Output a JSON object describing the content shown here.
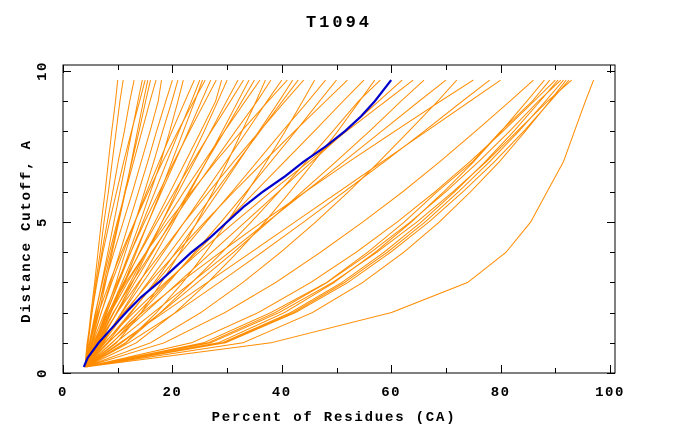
{
  "chart": {
    "background_color": "#ffffff",
    "axis_color": "#000000",
    "model_curve_color": "#ff8c00",
    "highlight_curve_color": "#0000cc"
  },
  "chart_data": {
    "type": "line",
    "title": "T1094",
    "xlabel": "Percent of Residues (CA)",
    "ylabel": "Distance Cutoff, A",
    "xlim": [
      0,
      102
    ],
    "ylim": [
      0,
      10.2
    ],
    "grid": false,
    "legend": "none",
    "x_major_ticks": [
      0,
      20,
      40,
      60,
      80,
      100
    ],
    "x_minor_ticks": [
      10,
      30,
      50,
      70,
      90
    ],
    "y_major_ticks": [
      0,
      5,
      10
    ],
    "y_minor_ticks": [
      1,
      2,
      3,
      4,
      6,
      7,
      8,
      9
    ],
    "cutoffs": [
      0.2,
      1,
      2,
      3,
      4,
      5,
      6,
      7,
      8,
      9,
      9.7
    ],
    "highlight_curve": {
      "color": "#0000cc",
      "cutoffs": [
        0.2,
        0.5,
        1,
        1.5,
        2,
        2.5,
        3,
        3.5,
        4,
        4.5,
        5,
        5.5,
        6,
        6.5,
        7,
        7.5,
        8,
        8.5,
        9,
        9.7
      ],
      "percents": [
        3.8,
        4.5,
        6.5,
        9,
        11.5,
        14.2,
        17.5,
        20.5,
        23.5,
        27,
        30,
        33,
        36.5,
        40.5,
        44,
        48,
        51.5,
        54.5,
        57,
        60
      ]
    },
    "model_curves": {
      "color": "#ff8c00",
      "percents_per_curve": [
        [
          4,
          4.5,
          5.1,
          5.8,
          6.4,
          7,
          7.7,
          8.3,
          8.9,
          9.6,
          10
        ],
        [
          4,
          4.6,
          5.3,
          6,
          6.8,
          7.5,
          8.3,
          9,
          9.7,
          10.4,
          11
        ],
        [
          4,
          4.5,
          5.3,
          6.2,
          7.1,
          8.1,
          9.1,
          10.1,
          11.2,
          12.2,
          13
        ],
        [
          4,
          4.9,
          6,
          7.1,
          8.2,
          9.3,
          10.4,
          11.5,
          12.6,
          13.7,
          14.5
        ],
        [
          4,
          4.4,
          5.3,
          6.2,
          7.3,
          8.5,
          9.8,
          11.1,
          12.5,
          14,
          15
        ],
        [
          4,
          5.2,
          6.6,
          7.8,
          9,
          10.2,
          11.4,
          12.5,
          13.6,
          14.7,
          15.5
        ],
        [
          4,
          5,
          6.3,
          7.5,
          8.8,
          10.1,
          11.3,
          12.6,
          13.9,
          15.1,
          16
        ],
        [
          4,
          4.8,
          5.9,
          7.2,
          8.5,
          9.9,
          11.4,
          12.9,
          14.4,
          15.9,
          17
        ],
        [
          4,
          4.9,
          6.2,
          7.7,
          9.3,
          11,
          12.7,
          14.3,
          15.9,
          17.4,
          18
        ],
        [
          4,
          5.3,
          7,
          8.7,
          10.4,
          12.1,
          13.8,
          15.5,
          17.1,
          18.8,
          20
        ],
        [
          4,
          5.8,
          7.8,
          9.7,
          11.4,
          13.2,
          14.9,
          16.6,
          18.2,
          19.9,
          21
        ],
        [
          4,
          5.9,
          8,
          10.1,
          12.1,
          14.1,
          16,
          17.9,
          19.5,
          21,
          22
        ],
        [
          4,
          5.2,
          7,
          8.9,
          11,
          13.1,
          15.3,
          17.6,
          19.9,
          22.3,
          24
        ],
        [
          4,
          5.8,
          8,
          10.2,
          12.4,
          14.6,
          16.8,
          19,
          21.2,
          23.5,
          25
        ],
        [
          4,
          6.3,
          8.8,
          11.2,
          13.4,
          15.6,
          17.8,
          19.9,
          22,
          24.1,
          25.5
        ],
        [
          4,
          4.9,
          6.5,
          8.5,
          10.7,
          13.1,
          15.6,
          18.2,
          21,
          23.9,
          26
        ],
        [
          4,
          5.9,
          8.4,
          10.8,
          13.2,
          15.6,
          18,
          20.5,
          22.9,
          25.3,
          27
        ],
        [
          4,
          5.4,
          7.6,
          9.9,
          12.4,
          14.9,
          17.6,
          20.3,
          23.1,
          26,
          28
        ],
        [
          4,
          6.1,
          8.6,
          11.3,
          14,
          16.8,
          19.6,
          22.4,
          25.2,
          27.9,
          29
        ],
        [
          4,
          6.8,
          9.8,
          12.7,
          15.4,
          18.1,
          20.7,
          23.2,
          25.8,
          28.3,
          30
        ],
        [
          4,
          6.4,
          9.3,
          12.3,
          15.2,
          18.1,
          21.1,
          24,
          27,
          29.9,
          32
        ],
        [
          4,
          5.7,
          8.3,
          11.1,
          14.1,
          17.2,
          20.4,
          23.7,
          27.1,
          30.6,
          33
        ],
        [
          4,
          7.2,
          10.7,
          14,
          17.1,
          20.2,
          23.2,
          26.2,
          29.1,
          32,
          34
        ],
        [
          4,
          6.6,
          9.9,
          13.1,
          16.4,
          19.7,
          23,
          26.2,
          29.5,
          32.7,
          35
        ],
        [
          4,
          5.9,
          8.7,
          11.8,
          15.2,
          18.6,
          22.1,
          25.8,
          29.5,
          33.3,
          36
        ],
        [
          4,
          9.8,
          14.3,
          18,
          21.4,
          24.5,
          27.4,
          30.1,
          32.7,
          35.3,
          37
        ],
        [
          4,
          6.2,
          9.2,
          12.6,
          16.2,
          19.9,
          23.7,
          27.6,
          31.5,
          35.5,
          38
        ],
        [
          4,
          7,
          10.8,
          14.6,
          18.4,
          22.2,
          26,
          29.8,
          33.6,
          37.3,
          40
        ],
        [
          4,
          5.5,
          8.3,
          11.5,
          15.2,
          19.2,
          23.5,
          27.9,
          32.6,
          37.5,
          41
        ],
        [
          4,
          8.1,
          12.5,
          16.7,
          20.6,
          24.6,
          28.4,
          32.1,
          35.8,
          39.5,
          42
        ],
        [
          4,
          7.3,
          11.4,
          15.5,
          19.6,
          23.7,
          27.8,
          31.9,
          36,
          40.1,
          43
        ],
        [
          4,
          6.3,
          9.9,
          13.8,
          18,
          22.2,
          26.7,
          31.2,
          35.9,
          40.6,
          44
        ],
        [
          4,
          11.4,
          17.1,
          21.9,
          26.1,
          30,
          33.7,
          37.2,
          40.6,
          43.8,
          46
        ],
        [
          4,
          7.7,
          12.3,
          17,
          21.6,
          26.2,
          30.9,
          35.5,
          40.1,
          44.8,
          48
        ],
        [
          4,
          9,
          14.3,
          19.3,
          24.1,
          28.9,
          33.5,
          38,
          42.5,
          46.9,
          50
        ],
        [
          4,
          6.8,
          11.1,
          15.8,
          20.8,
          25.9,
          31.2,
          36.7,
          42.3,
          48,
          52
        ],
        [
          4,
          8.3,
          13.7,
          19,
          24.4,
          29.8,
          35.1,
          40.5,
          45.9,
          51.2,
          55
        ],
        [
          4,
          13.4,
          20.5,
          26.5,
          31.9,
          36.9,
          41.5,
          45.9,
          50.2,
          54.2,
          57
        ],
        [
          4,
          11.5,
          17.8,
          23.6,
          29.1,
          34.4,
          39.5,
          44.5,
          49.3,
          54,
          58
        ],
        [
          4,
          8.9,
          15,
          21.1,
          27.2,
          33.3,
          39.4,
          45.5,
          51.6,
          57.7,
          62
        ],
        [
          4,
          7.5,
          12.9,
          18.7,
          24.9,
          31.4,
          38,
          44.9,
          51.8,
          59,
          64
        ],
        [
          4,
          10.7,
          17.9,
          24.6,
          31.2,
          37.5,
          43.7,
          49.9,
          56,
          61.8,
          66
        ],
        [
          4,
          9.6,
          16.5,
          23.5,
          30.4,
          37.3,
          44.3,
          51.3,
          58.2,
          65.1,
          70
        ],
        [
          4,
          16,
          25.2,
          32.9,
          39.8,
          46.2,
          52.2,
          57.8,
          63.2,
          68.5,
          72
        ],
        [
          4,
          8.1,
          14.5,
          21.4,
          28.8,
          36.4,
          44.3,
          52.3,
          60.6,
          69,
          75
        ],
        [
          4,
          12,
          20.6,
          28.6,
          36.4,
          44,
          51.4,
          58.8,
          66,
          73,
          78
        ],
        [
          4,
          10.4,
          18.4,
          26.4,
          34.4,
          42.4,
          50.4,
          58.4,
          66.4,
          74.4,
          80
        ],
        [
          4,
          18.5,
          29.6,
          38.9,
          47.1,
          54.8,
          62.1,
          68.9,
          75.4,
          81.7,
          86
        ],
        [
          4,
          28.4,
          40.5,
          49.6,
          57.1,
          63.7,
          69.6,
          75.1,
          80.1,
          84.8,
          88
        ],
        [
          4,
          25.7,
          38,
          48.2,
          55.7,
          62.4,
          68.4,
          74.9,
          80,
          85.8,
          89
        ],
        [
          4,
          23.5,
          35.7,
          45.3,
          53.6,
          61.1,
          68,
          74.4,
          80.4,
          86.1,
          90
        ],
        [
          4,
          29.1,
          41.6,
          51,
          58.7,
          65.5,
          71.6,
          77.2,
          82.4,
          87.2,
          90.5
        ],
        [
          4,
          26.5,
          38.8,
          48.3,
          56.3,
          63.5,
          70,
          76,
          81.6,
          86.9,
          91
        ],
        [
          4,
          29.4,
          42.1,
          51.5,
          59.3,
          66.2,
          72.3,
          78,
          83.3,
          88.2,
          91.5
        ],
        [
          4,
          32.9,
          45.6,
          54.8,
          62.3,
          68.8,
          74.5,
          79.8,
          84.5,
          89,
          92
        ],
        [
          4,
          29.7,
          42.5,
          52.1,
          59.9,
          66.9,
          73.1,
          78.9,
          84.2,
          89.1,
          92.5
        ],
        [
          4,
          27,
          39.5,
          49.3,
          57.4,
          64.7,
          71.3,
          77.4,
          83,
          88.6,
          93
        ],
        [
          4,
          38,
          60,
          74,
          81,
          85.5,
          88.5,
          91.5,
          93.5,
          95.5,
          97
        ]
      ]
    }
  }
}
